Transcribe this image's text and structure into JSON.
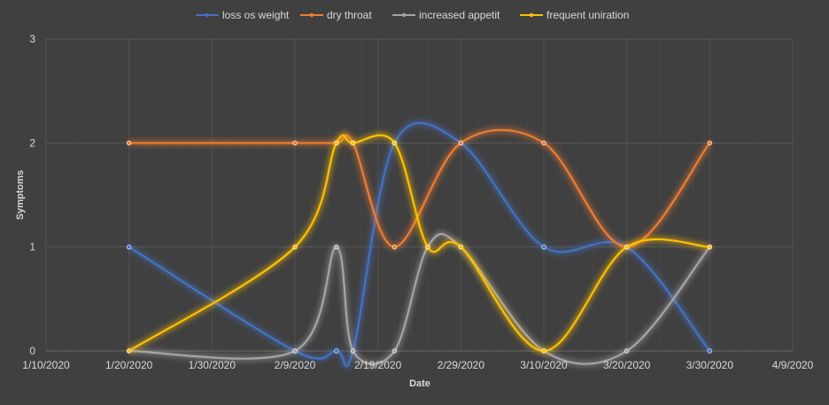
{
  "chart_data": {
    "type": "line",
    "xlabel": "Date",
    "ylabel": "Symptoms",
    "ylim": [
      0,
      3
    ],
    "yticks": [
      "0",
      "1",
      "2",
      "3"
    ],
    "xlim": [
      "2020-01-10",
      "2020-04-09"
    ],
    "xticks": [
      "1/10/2020",
      "1/20/2020",
      "1/30/2020",
      "2/9/2020",
      "2/19/2020",
      "2/29/2020",
      "3/10/2020",
      "3/20/2020",
      "3/30/2020",
      "4/9/2020"
    ],
    "xtick_dates": [
      "2020-01-10",
      "2020-01-20",
      "2020-01-30",
      "2020-02-09",
      "2020-02-19",
      "2020-02-29",
      "2020-03-10",
      "2020-03-20",
      "2020-03-30",
      "2020-04-09"
    ],
    "grid": true,
    "legend": "top",
    "smooth": true,
    "series": [
      {
        "name": "loss os weight",
        "color": "#4472c4",
        "points": [
          {
            "x": "2020-01-20",
            "y": 1
          },
          {
            "x": "2020-02-09",
            "y": 0
          },
          {
            "x": "2020-02-14",
            "y": 0
          },
          {
            "x": "2020-02-16",
            "y": 0
          },
          {
            "x": "2020-02-21",
            "y": 2
          },
          {
            "x": "2020-02-29",
            "y": 2
          },
          {
            "x": "2020-03-10",
            "y": 1
          },
          {
            "x": "2020-03-20",
            "y": 1
          },
          {
            "x": "2020-03-30",
            "y": 0
          }
        ]
      },
      {
        "name": "dry throat",
        "color": "#ed7d31",
        "points": [
          {
            "x": "2020-01-20",
            "y": 2
          },
          {
            "x": "2020-02-09",
            "y": 2
          },
          {
            "x": "2020-02-14",
            "y": 2
          },
          {
            "x": "2020-02-16",
            "y": 2
          },
          {
            "x": "2020-02-21",
            "y": 1
          },
          {
            "x": "2020-02-29",
            "y": 2
          },
          {
            "x": "2020-03-10",
            "y": 2
          },
          {
            "x": "2020-03-20",
            "y": 1
          },
          {
            "x": "2020-03-30",
            "y": 2
          }
        ]
      },
      {
        "name": "increased appetit",
        "color": "#a5a5a5",
        "points": [
          {
            "x": "2020-01-20",
            "y": 0
          },
          {
            "x": "2020-02-09",
            "y": 0
          },
          {
            "x": "2020-02-14",
            "y": 1
          },
          {
            "x": "2020-02-16",
            "y": 0
          },
          {
            "x": "2020-02-21",
            "y": 0
          },
          {
            "x": "2020-02-25",
            "y": 1
          },
          {
            "x": "2020-02-29",
            "y": 1
          },
          {
            "x": "2020-03-10",
            "y": 0
          },
          {
            "x": "2020-03-20",
            "y": 0
          },
          {
            "x": "2020-03-30",
            "y": 1
          }
        ]
      },
      {
        "name": "frequent uniration",
        "color": "#ffc000",
        "points": [
          {
            "x": "2020-01-20",
            "y": 0
          },
          {
            "x": "2020-02-09",
            "y": 1
          },
          {
            "x": "2020-02-14",
            "y": 2
          },
          {
            "x": "2020-02-16",
            "y": 2
          },
          {
            "x": "2020-02-21",
            "y": 2
          },
          {
            "x": "2020-02-25",
            "y": 1
          },
          {
            "x": "2020-02-29",
            "y": 1
          },
          {
            "x": "2020-03-10",
            "y": 0
          },
          {
            "x": "2020-03-20",
            "y": 1
          },
          {
            "x": "2020-03-30",
            "y": 1
          }
        ]
      }
    ]
  }
}
